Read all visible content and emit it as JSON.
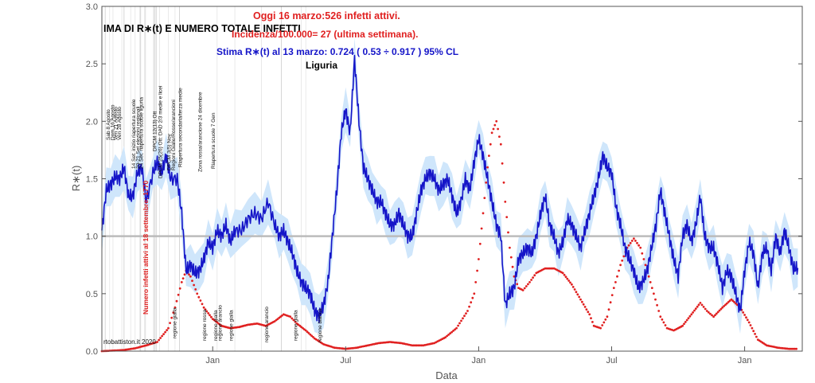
{
  "chart_data": {
    "type": "line",
    "title_lines": [
      "Oggi 16 marzo:526 infetti attivi.",
      "Incidenza/100.000= 27 (ultima settimana).",
      "Stima R∗(t) al 13 marzo: 0.724 ( 0.53 ÷ 0.917 ) 95% CL"
    ],
    "header_text": "IMA DI R∗(t) E NUMERO TOTALE INFETTI",
    "region": "Liguria",
    "credit": "rtobattiston.it 2020",
    "xlabel": "Data",
    "ylabel": "R∗(t)",
    "ylim": [
      0,
      3
    ],
    "yticks": [
      "0.0",
      "0.5",
      "1.0",
      "1.5",
      "2.0",
      "2.5",
      "3.0"
    ],
    "xticks": [
      {
        "label": "Jan",
        "month_index": 5
      },
      {
        "label": "Jul",
        "month_index": 11
      },
      {
        "label": "Jan",
        "month_index": 17
      },
      {
        "label": "Jul",
        "month_index": 23
      },
      {
        "label": "Jan",
        "month_index": 29
      }
    ],
    "x_unit": "months since 1 Aug 2020",
    "reference_line": 1.0,
    "red_axis_label": "Numero infetti attivi al 18 settembre: 1770",
    "series": [
      {
        "name": "Stima R∗(t)",
        "color": "#1515c8",
        "points": [
          [
            0.0,
            1.05
          ],
          [
            0.2,
            1.4
          ],
          [
            0.4,
            1.45
          ],
          [
            0.6,
            1.52
          ],
          [
            0.8,
            1.5
          ],
          [
            1.0,
            1.6
          ],
          [
            1.2,
            1.35
          ],
          [
            1.4,
            1.35
          ],
          [
            1.6,
            1.55
          ],
          [
            1.8,
            1.6
          ],
          [
            2.0,
            1.3
          ],
          [
            2.3,
            1.55
          ],
          [
            2.5,
            1.65
          ],
          [
            2.7,
            1.55
          ],
          [
            2.9,
            1.7
          ],
          [
            3.1,
            1.5
          ],
          [
            3.4,
            1.5
          ],
          [
            3.6,
            1.2
          ],
          [
            3.8,
            0.7
          ],
          [
            4.0,
            0.75
          ],
          [
            4.2,
            0.68
          ],
          [
            4.4,
            0.7
          ],
          [
            4.6,
            0.8
          ],
          [
            4.8,
            0.95
          ],
          [
            5.0,
            0.9
          ],
          [
            5.2,
            1.05
          ],
          [
            5.4,
            1.0
          ],
          [
            5.6,
            1.1
          ],
          [
            5.8,
            0.95
          ],
          [
            6.0,
            1.05
          ],
          [
            6.3,
            1.05
          ],
          [
            6.6,
            1.15
          ],
          [
            6.9,
            1.2
          ],
          [
            7.2,
            1.15
          ],
          [
            7.5,
            1.3
          ],
          [
            7.8,
            1.1
          ],
          [
            8.0,
            1.0
          ],
          [
            8.2,
            1.05
          ],
          [
            8.4,
            0.95
          ],
          [
            8.6,
            0.85
          ],
          [
            8.8,
            0.7
          ],
          [
            9.0,
            0.6
          ],
          [
            9.2,
            0.55
          ],
          [
            9.4,
            0.5
          ],
          [
            9.6,
            0.35
          ],
          [
            9.8,
            0.3
          ],
          [
            10.0,
            0.4
          ],
          [
            10.2,
            0.6
          ],
          [
            10.4,
            1.0
          ],
          [
            10.6,
            1.4
          ],
          [
            10.8,
            1.9
          ],
          [
            11.0,
            2.1
          ],
          [
            11.2,
            1.9
          ],
          [
            11.4,
            2.54
          ],
          [
            11.6,
            2.0
          ],
          [
            11.8,
            1.6
          ],
          [
            12.0,
            1.5
          ],
          [
            12.2,
            1.4
          ],
          [
            12.4,
            1.3
          ],
          [
            12.6,
            1.3
          ],
          [
            12.8,
            1.2
          ],
          [
            13.0,
            1.1
          ],
          [
            13.2,
            1.1
          ],
          [
            13.4,
            1.2
          ],
          [
            13.6,
            1.1
          ],
          [
            13.8,
            1.0
          ],
          [
            14.0,
            1.0
          ],
          [
            14.2,
            1.2
          ],
          [
            14.4,
            1.4
          ],
          [
            14.6,
            1.5
          ],
          [
            14.8,
            1.55
          ],
          [
            15.0,
            1.5
          ],
          [
            15.2,
            1.4
          ],
          [
            15.4,
            1.45
          ],
          [
            15.6,
            1.5
          ],
          [
            15.8,
            1.35
          ],
          [
            16.0,
            1.2
          ],
          [
            16.2,
            1.3
          ],
          [
            16.4,
            1.5
          ],
          [
            16.6,
            1.4
          ],
          [
            16.8,
            1.65
          ],
          [
            17.0,
            1.85
          ],
          [
            17.2,
            1.7
          ],
          [
            17.4,
            1.5
          ],
          [
            17.6,
            1.3
          ],
          [
            17.8,
            1.1
          ],
          [
            18.0,
            1.0
          ],
          [
            18.2,
            0.4
          ],
          [
            18.4,
            0.5
          ],
          [
            18.6,
            0.55
          ],
          [
            18.8,
            0.8
          ],
          [
            19.0,
            0.85
          ],
          [
            19.2,
            0.9
          ],
          [
            19.4,
            0.85
          ],
          [
            19.6,
            1.0
          ],
          [
            19.8,
            1.2
          ],
          [
            20.0,
            1.35
          ],
          [
            20.2,
            1.1
          ],
          [
            20.4,
            1.0
          ],
          [
            20.6,
            0.85
          ],
          [
            20.8,
            0.95
          ],
          [
            21.0,
            1.15
          ],
          [
            21.2,
            1.1
          ],
          [
            21.4,
            1.0
          ],
          [
            21.6,
            0.9
          ],
          [
            21.8,
            1.05
          ],
          [
            22.0,
            1.2
          ],
          [
            22.2,
            1.35
          ],
          [
            22.4,
            1.5
          ],
          [
            22.6,
            1.7
          ],
          [
            22.8,
            1.6
          ],
          [
            23.0,
            1.55
          ],
          [
            23.2,
            1.25
          ],
          [
            23.4,
            1.1
          ],
          [
            23.6,
            0.9
          ],
          [
            23.8,
            0.8
          ],
          [
            24.0,
            0.7
          ],
          [
            24.2,
            0.55
          ],
          [
            24.4,
            0.6
          ],
          [
            24.6,
            0.7
          ],
          [
            24.8,
            0.9
          ],
          [
            25.0,
            1.1
          ],
          [
            25.2,
            1.4
          ],
          [
            25.4,
            1.2
          ],
          [
            25.6,
            1.0
          ],
          [
            25.8,
            0.8
          ],
          [
            26.0,
            0.65
          ],
          [
            26.2,
            1.0
          ],
          [
            26.4,
            1.1
          ],
          [
            26.6,
            0.95
          ],
          [
            26.8,
            1.1
          ],
          [
            27.0,
            1.35
          ],
          [
            27.2,
            1.0
          ],
          [
            27.4,
            0.9
          ],
          [
            27.6,
            0.9
          ],
          [
            27.8,
            0.75
          ],
          [
            28.0,
            0.55
          ],
          [
            28.2,
            0.7
          ],
          [
            28.4,
            0.65
          ],
          [
            28.6,
            0.5
          ],
          [
            28.8,
            0.35
          ],
          [
            29.0,
            0.7
          ],
          [
            29.2,
            0.95
          ],
          [
            29.4,
            0.85
          ],
          [
            29.6,
            0.55
          ],
          [
            29.8,
            0.85
          ],
          [
            30.0,
            0.9
          ],
          [
            30.2,
            0.7
          ],
          [
            30.4,
            1.0
          ],
          [
            30.6,
            0.85
          ],
          [
            30.8,
            1.05
          ],
          [
            31.0,
            0.9
          ],
          [
            31.2,
            0.72
          ],
          [
            31.4,
            0.724
          ]
        ]
      },
      {
        "name": "Numero infetti attivi",
        "color": "#e02020",
        "points": [
          [
            0.0,
            0.0
          ],
          [
            0.5,
            0.005
          ],
          [
            1.0,
            0.01
          ],
          [
            1.5,
            0.025
          ],
          [
            2.0,
            0.05
          ],
          [
            2.5,
            0.08
          ],
          [
            3.0,
            0.2
          ],
          [
            3.3,
            0.38
          ],
          [
            3.6,
            0.6
          ],
          [
            3.8,
            0.7
          ],
          [
            4.0,
            0.65
          ],
          [
            4.3,
            0.5
          ],
          [
            4.6,
            0.38
          ],
          [
            5.0,
            0.28
          ],
          [
            5.4,
            0.22
          ],
          [
            5.8,
            0.2
          ],
          [
            6.2,
            0.21
          ],
          [
            6.6,
            0.23
          ],
          [
            7.0,
            0.24
          ],
          [
            7.4,
            0.22
          ],
          [
            7.8,
            0.26
          ],
          [
            8.2,
            0.32
          ],
          [
            8.5,
            0.3
          ],
          [
            8.8,
            0.24
          ],
          [
            9.2,
            0.18
          ],
          [
            9.6,
            0.11
          ],
          [
            10.0,
            0.06
          ],
          [
            10.5,
            0.03
          ],
          [
            11.0,
            0.02
          ],
          [
            11.5,
            0.03
          ],
          [
            12.0,
            0.05
          ],
          [
            12.5,
            0.07
          ],
          [
            13.0,
            0.08
          ],
          [
            13.5,
            0.07
          ],
          [
            14.0,
            0.05
          ],
          [
            14.5,
            0.05
          ],
          [
            15.0,
            0.07
          ],
          [
            15.5,
            0.12
          ],
          [
            16.0,
            0.2
          ],
          [
            16.5,
            0.35
          ],
          [
            16.8,
            0.5
          ],
          [
            17.0,
            0.8
          ],
          [
            17.2,
            1.2
          ],
          [
            17.4,
            1.6
          ],
          [
            17.6,
            1.9
          ],
          [
            17.8,
            2.0
          ],
          [
            18.0,
            1.8
          ],
          [
            18.2,
            1.3
          ],
          [
            18.4,
            0.9
          ],
          [
            18.6,
            0.65
          ],
          [
            18.8,
            0.55
          ],
          [
            19.0,
            0.53
          ],
          [
            19.3,
            0.6
          ],
          [
            19.6,
            0.68
          ],
          [
            20.0,
            0.72
          ],
          [
            20.4,
            0.72
          ],
          [
            20.8,
            0.68
          ],
          [
            21.2,
            0.58
          ],
          [
            21.6,
            0.45
          ],
          [
            22.0,
            0.32
          ],
          [
            22.2,
            0.22
          ],
          [
            22.5,
            0.2
          ],
          [
            22.8,
            0.3
          ],
          [
            23.1,
            0.55
          ],
          [
            23.4,
            0.75
          ],
          [
            23.7,
            0.9
          ],
          [
            24.0,
            0.98
          ],
          [
            24.3,
            0.9
          ],
          [
            24.6,
            0.7
          ],
          [
            24.9,
            0.5
          ],
          [
            25.2,
            0.3
          ],
          [
            25.5,
            0.2
          ],
          [
            25.8,
            0.18
          ],
          [
            26.2,
            0.22
          ],
          [
            26.6,
            0.32
          ],
          [
            27.0,
            0.42
          ],
          [
            27.3,
            0.35
          ],
          [
            27.6,
            0.3
          ],
          [
            28.0,
            0.38
          ],
          [
            28.4,
            0.45
          ],
          [
            28.8,
            0.38
          ],
          [
            29.2,
            0.25
          ],
          [
            29.6,
            0.1
          ],
          [
            30.0,
            0.05
          ],
          [
            30.5,
            0.03
          ],
          [
            31.0,
            0.02
          ],
          [
            31.4,
            0.02
          ]
        ]
      }
    ],
    "band_color": "#cfe6fb",
    "annotations_top": [
      "Sab 8 Agosto",
      "Dom 16 Agosto",
      "Ven 21 Agosto",
      "Ven 28 Agosto",
      "14 Set: inizio riapertura scuole",
      "20-21 Set elezioni regionali",
      "24 Set: riapertura scuole liguria",
      "DPCM 12(13) Ott",
      "DPCM 25(26) Ott: DAD 2/3 medie e licei",
      "DPCM 3(5) Nov",
      "Regioni Gialle/Rosse/arancioni",
      "Riapertura secondaria/terza medie",
      "Zona rossa/arancione 24 dicembre",
      "Riapertura scuole 7 Gen"
    ],
    "annotations_bottom": [
      "regione gialla",
      "regione rossa",
      "regione gialla",
      "regione arancio",
      "regione gialla",
      "regione arancio",
      "regione gialla",
      "regione bianca"
    ]
  }
}
